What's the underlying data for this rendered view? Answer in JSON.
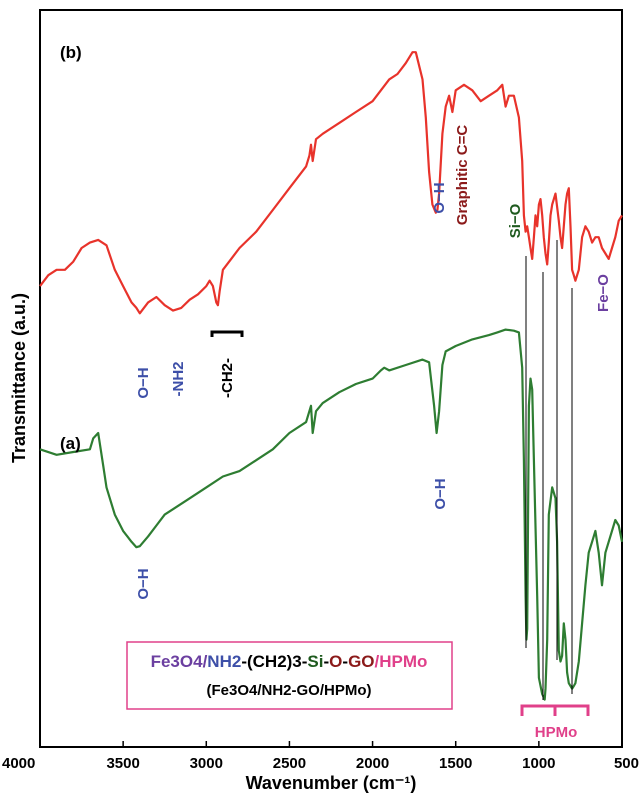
{
  "chart_data": {
    "type": "line",
    "xlabel": "Wavenumber (cm⁻¹)",
    "ylabel": "Transmittance (a.u.)",
    "xlim": [
      4000,
      500
    ],
    "x_ticks": [
      4000,
      3500,
      3000,
      2500,
      2000,
      1500,
      1000,
      500
    ],
    "y_ticks_shown": false,
    "grid": false,
    "series": [
      {
        "name": "(a) Fe3O4/NH2-(CH2)3-Si-O-GO/HPMo",
        "color": "#2e7d32",
        "x": [
          4000,
          3900,
          3800,
          3700,
          3680,
          3650,
          3620,
          3600,
          3550,
          3500,
          3450,
          3420,
          3400,
          3350,
          3300,
          3250,
          3200,
          3100,
          3000,
          2900,
          2800,
          2700,
          2600,
          2500,
          2400,
          2370,
          2360,
          2340,
          2300,
          2200,
          2100,
          2000,
          1950,
          1930,
          1900,
          1800,
          1700,
          1660,
          1630,
          1615,
          1600,
          1580,
          1560,
          1500,
          1400,
          1300,
          1250,
          1200,
          1150,
          1120,
          1100,
          1090,
          1080,
          1075,
          1070,
          1060,
          1050,
          1040,
          1030,
          1010,
          1000,
          980,
          965,
          960,
          950,
          940,
          920,
          900,
          890,
          880,
          870,
          860,
          850,
          840,
          830,
          820,
          810,
          800,
          790,
          780,
          760,
          740,
          720,
          700,
          680,
          660,
          640,
          620,
          600,
          580,
          560,
          540,
          520,
          500
        ],
        "y": [
          0.47,
          0.46,
          0.465,
          0.47,
          0.49,
          0.5,
          0.44,
          0.4,
          0.35,
          0.32,
          0.3,
          0.29,
          0.292,
          0.31,
          0.33,
          0.35,
          0.36,
          0.38,
          0.4,
          0.42,
          0.43,
          0.45,
          0.47,
          0.5,
          0.52,
          0.55,
          0.5,
          0.54,
          0.555,
          0.575,
          0.59,
          0.6,
          0.615,
          0.62,
          0.615,
          0.625,
          0.635,
          0.63,
          0.55,
          0.5,
          0.54,
          0.625,
          0.65,
          0.66,
          0.672,
          0.68,
          0.685,
          0.69,
          0.688,
          0.685,
          0.62,
          0.45,
          0.2,
          0.12,
          0.14,
          0.55,
          0.6,
          0.58,
          0.45,
          0.2,
          0.05,
          0.02,
          0.01,
          0.03,
          0.12,
          0.35,
          0.4,
          0.38,
          0.3,
          0.1,
          0.08,
          0.09,
          0.15,
          0.12,
          0.06,
          0.04,
          0.035,
          0.03,
          0.035,
          0.04,
          0.08,
          0.15,
          0.22,
          0.28,
          0.3,
          0.32,
          0.28,
          0.22,
          0.28,
          0.3,
          0.32,
          0.34,
          0.33,
          0.3
        ]
      },
      {
        "name": "(b) Fe3O4/NH2-(CH2)3-Si-O-GO",
        "color": "#e8332b",
        "x": [
          4000,
          3950,
          3900,
          3850,
          3800,
          3750,
          3700,
          3650,
          3600,
          3550,
          3500,
          3450,
          3420,
          3400,
          3350,
          3300,
          3250,
          3200,
          3150,
          3100,
          3050,
          3000,
          2980,
          2960,
          2940,
          2930,
          2920,
          2900,
          2850,
          2800,
          2700,
          2600,
          2500,
          2400,
          2380,
          2370,
          2360,
          2340,
          2300,
          2200,
          2100,
          2000,
          1950,
          1900,
          1850,
          1800,
          1780,
          1760,
          1740,
          1700,
          1680,
          1660,
          1640,
          1620,
          1610,
          1600,
          1580,
          1560,
          1540,
          1520,
          1500,
          1450,
          1400,
          1350,
          1300,
          1250,
          1220,
          1200,
          1180,
          1150,
          1120,
          1100,
          1090,
          1080,
          1070,
          1060,
          1050,
          1040,
          1030,
          1020,
          1010,
          1000,
          990,
          980,
          970,
          960,
          950,
          940,
          930,
          920,
          900,
          880,
          870,
          860,
          850,
          840,
          830,
          820,
          810,
          800,
          790,
          780,
          760,
          740,
          720,
          700,
          680,
          660,
          640,
          620,
          600,
          580,
          560,
          540,
          520,
          500
        ],
        "y": [
          0.77,
          0.79,
          0.8,
          0.8,
          0.815,
          0.84,
          0.85,
          0.855,
          0.845,
          0.8,
          0.77,
          0.74,
          0.73,
          0.72,
          0.74,
          0.75,
          0.735,
          0.725,
          0.73,
          0.745,
          0.755,
          0.77,
          0.78,
          0.77,
          0.74,
          0.735,
          0.76,
          0.8,
          0.82,
          0.84,
          0.87,
          0.91,
          0.95,
          0.99,
          1.01,
          1.03,
          1.0,
          1.04,
          1.05,
          1.07,
          1.09,
          1.11,
          1.13,
          1.15,
          1.16,
          1.18,
          1.19,
          1.2,
          1.2,
          1.15,
          1.08,
          0.98,
          0.92,
          0.905,
          0.91,
          0.94,
          1.05,
          1.1,
          1.12,
          1.09,
          1.13,
          1.14,
          1.13,
          1.11,
          1.12,
          1.13,
          1.14,
          1.1,
          1.12,
          1.12,
          1.08,
          1.0,
          0.9,
          0.87,
          0.88,
          0.86,
          0.84,
          0.82,
          0.86,
          0.9,
          0.88,
          0.92,
          0.93,
          0.9,
          0.86,
          0.83,
          0.81,
          0.85,
          0.9,
          0.92,
          0.94,
          0.89,
          0.86,
          0.84,
          0.88,
          0.92,
          0.94,
          0.95,
          0.88,
          0.8,
          0.79,
          0.78,
          0.8,
          0.86,
          0.88,
          0.87,
          0.85,
          0.86,
          0.86,
          0.84,
          0.83,
          0.82,
          0.84,
          0.86,
          0.89,
          0.9
        ]
      }
    ],
    "panel_labels": [
      "(b)",
      "(a)"
    ],
    "annotations": {
      "b_oh1": "O−H",
      "b_nh2": "-NH2",
      "b_ch2": "-CH2-",
      "b_oh2": "O−H",
      "b_graphitic": "Graphitic C=C",
      "b_sio": "Si−O",
      "b_feo": "Fe−O",
      "a_oh1": "O−H",
      "a_oh2": "O−H",
      "hpmo": "HPMo"
    },
    "legend": {
      "line1_fe3o4": "Fe3O4",
      "line1_slash1": "/",
      "line1_nh2": "NH2",
      "line1_ch2": "-(CH2)3-",
      "line1_si": "Si",
      "line1_dash1": "-",
      "line1_o": "O",
      "line1_dash2": "-",
      "line1_go": "GO",
      "line1_slash2": "/",
      "line1_hpmo": "HPMo",
      "line2": "(Fe3O4/NH2-GO/HPMo)"
    },
    "colors": {
      "blue": "#3d4fa8",
      "darkred": "#8b1a1a",
      "darkgreen": "#1e5a1e",
      "purple": "#6b3fa0",
      "pink": "#e0408a"
    }
  }
}
